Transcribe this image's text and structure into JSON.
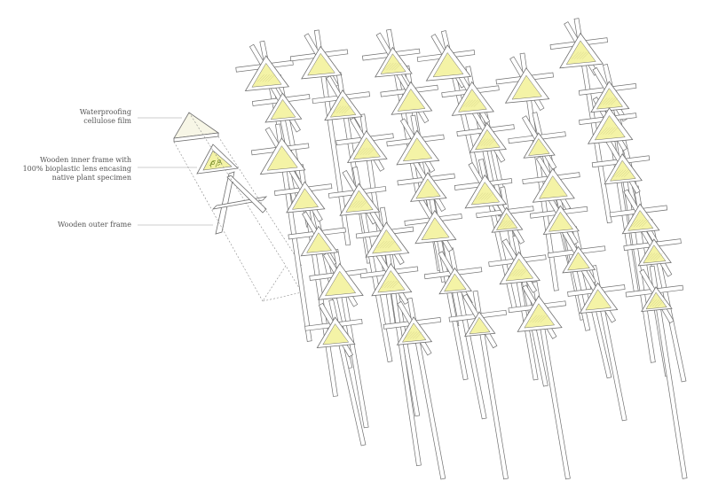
{
  "annotations": {
    "film": [
      "Waterproofing",
      "cellulose film"
    ],
    "inner": [
      "Wooden inner frame with",
      "100% bioplastic lens encasing",
      "native plant specimen"
    ],
    "outer": [
      "Wooden outer frame"
    ]
  },
  "colors": {
    "lens": "#f4f3a6",
    "line": "#6f6f6f",
    "leader": "#9a9a9a",
    "plant": "#7a8f2c"
  }
}
